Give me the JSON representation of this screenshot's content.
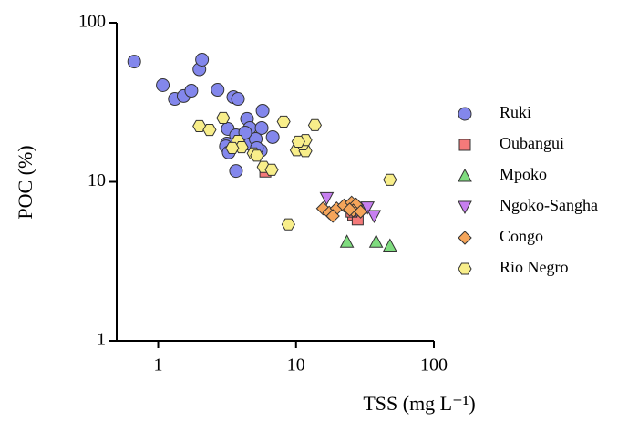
{
  "chart_data": {
    "type": "scatter",
    "x_label": "TSS (mg L⁻¹)",
    "y_label": "POC (%)",
    "xscale": "log",
    "yscale": "log",
    "xlim": [
      0.5,
      100
    ],
    "ylim": [
      1,
      100
    ],
    "xticks": [
      1,
      10,
      100
    ],
    "yticks": [
      1,
      10,
      100
    ],
    "legend": "right",
    "series": [
      {
        "name": "Ruki",
        "color": "#8387ec",
        "marker": "circle",
        "x": [
          0.67,
          1.08,
          1.32,
          1.53,
          1.74,
          1.99,
          2.08,
          2.7,
          3.51,
          3.79,
          5.72,
          4.41,
          3.2,
          3.67,
          4.62,
          5.63,
          6.77,
          3.15,
          3.1,
          3.25,
          4.48,
          4.62,
          5.1,
          5.55,
          3.67,
          5.2,
          4.28
        ],
        "y": [
          57,
          40.5,
          33.2,
          34.6,
          37.4,
          51,
          58.6,
          37.9,
          34.1,
          33.2,
          28,
          24.9,
          21.5,
          19.6,
          21.8,
          21.8,
          19.1,
          17.4,
          16.7,
          15.3,
          17.9,
          17.3,
          18.6,
          15.7,
          11.7,
          16.3,
          20.4
        ]
      },
      {
        "name": "Oubangui",
        "color": "#f47a7a",
        "marker": "square",
        "x": [
          5.99,
          26,
          28,
          25.3
        ],
        "y": [
          11.6,
          6.2,
          5.8,
          6.5
        ]
      },
      {
        "name": "Mpoko",
        "color": "#7fdc7f",
        "marker": "triangle-up",
        "x": [
          23.4,
          38.1,
          48
        ],
        "y": [
          4.2,
          4.2,
          3.97
        ]
      },
      {
        "name": "Ngoko-Sangha",
        "color": "#c77ff0",
        "marker": "triangle-down",
        "x": [
          16.7,
          33,
          36.8,
          27.6
        ],
        "y": [
          7.9,
          6.9,
          6.1,
          6.6
        ]
      },
      {
        "name": "Congo",
        "color": "#f5a55a",
        "marker": "diamond",
        "x": [
          15.7,
          17.4,
          19.7,
          22.3,
          25.3,
          27.2,
          26,
          29.4,
          18.5,
          24.5
        ],
        "y": [
          6.8,
          6.4,
          6.8,
          7.1,
          7.4,
          7.2,
          6.6,
          6.5,
          6.1,
          6.7
        ]
      },
      {
        "name": "Rio Negro",
        "color": "#f8ee8a",
        "marker": "hexagon",
        "x": [
          1.99,
          2.36,
          2.96,
          3.79,
          4.92,
          4.03,
          5.82,
          6.66,
          8.13,
          13.7,
          8.8,
          10.1,
          11.7,
          11.2,
          11.7,
          10.4,
          48,
          3.45,
          5.2
        ],
        "y": [
          22.4,
          21.2,
          25.2,
          18.1,
          15.1,
          16.5,
          12.4,
          11.9,
          23.9,
          22.7,
          5.4,
          15.8,
          15.6,
          17.2,
          18.3,
          17.9,
          10.3,
          16.3,
          14.6
        ]
      }
    ]
  }
}
